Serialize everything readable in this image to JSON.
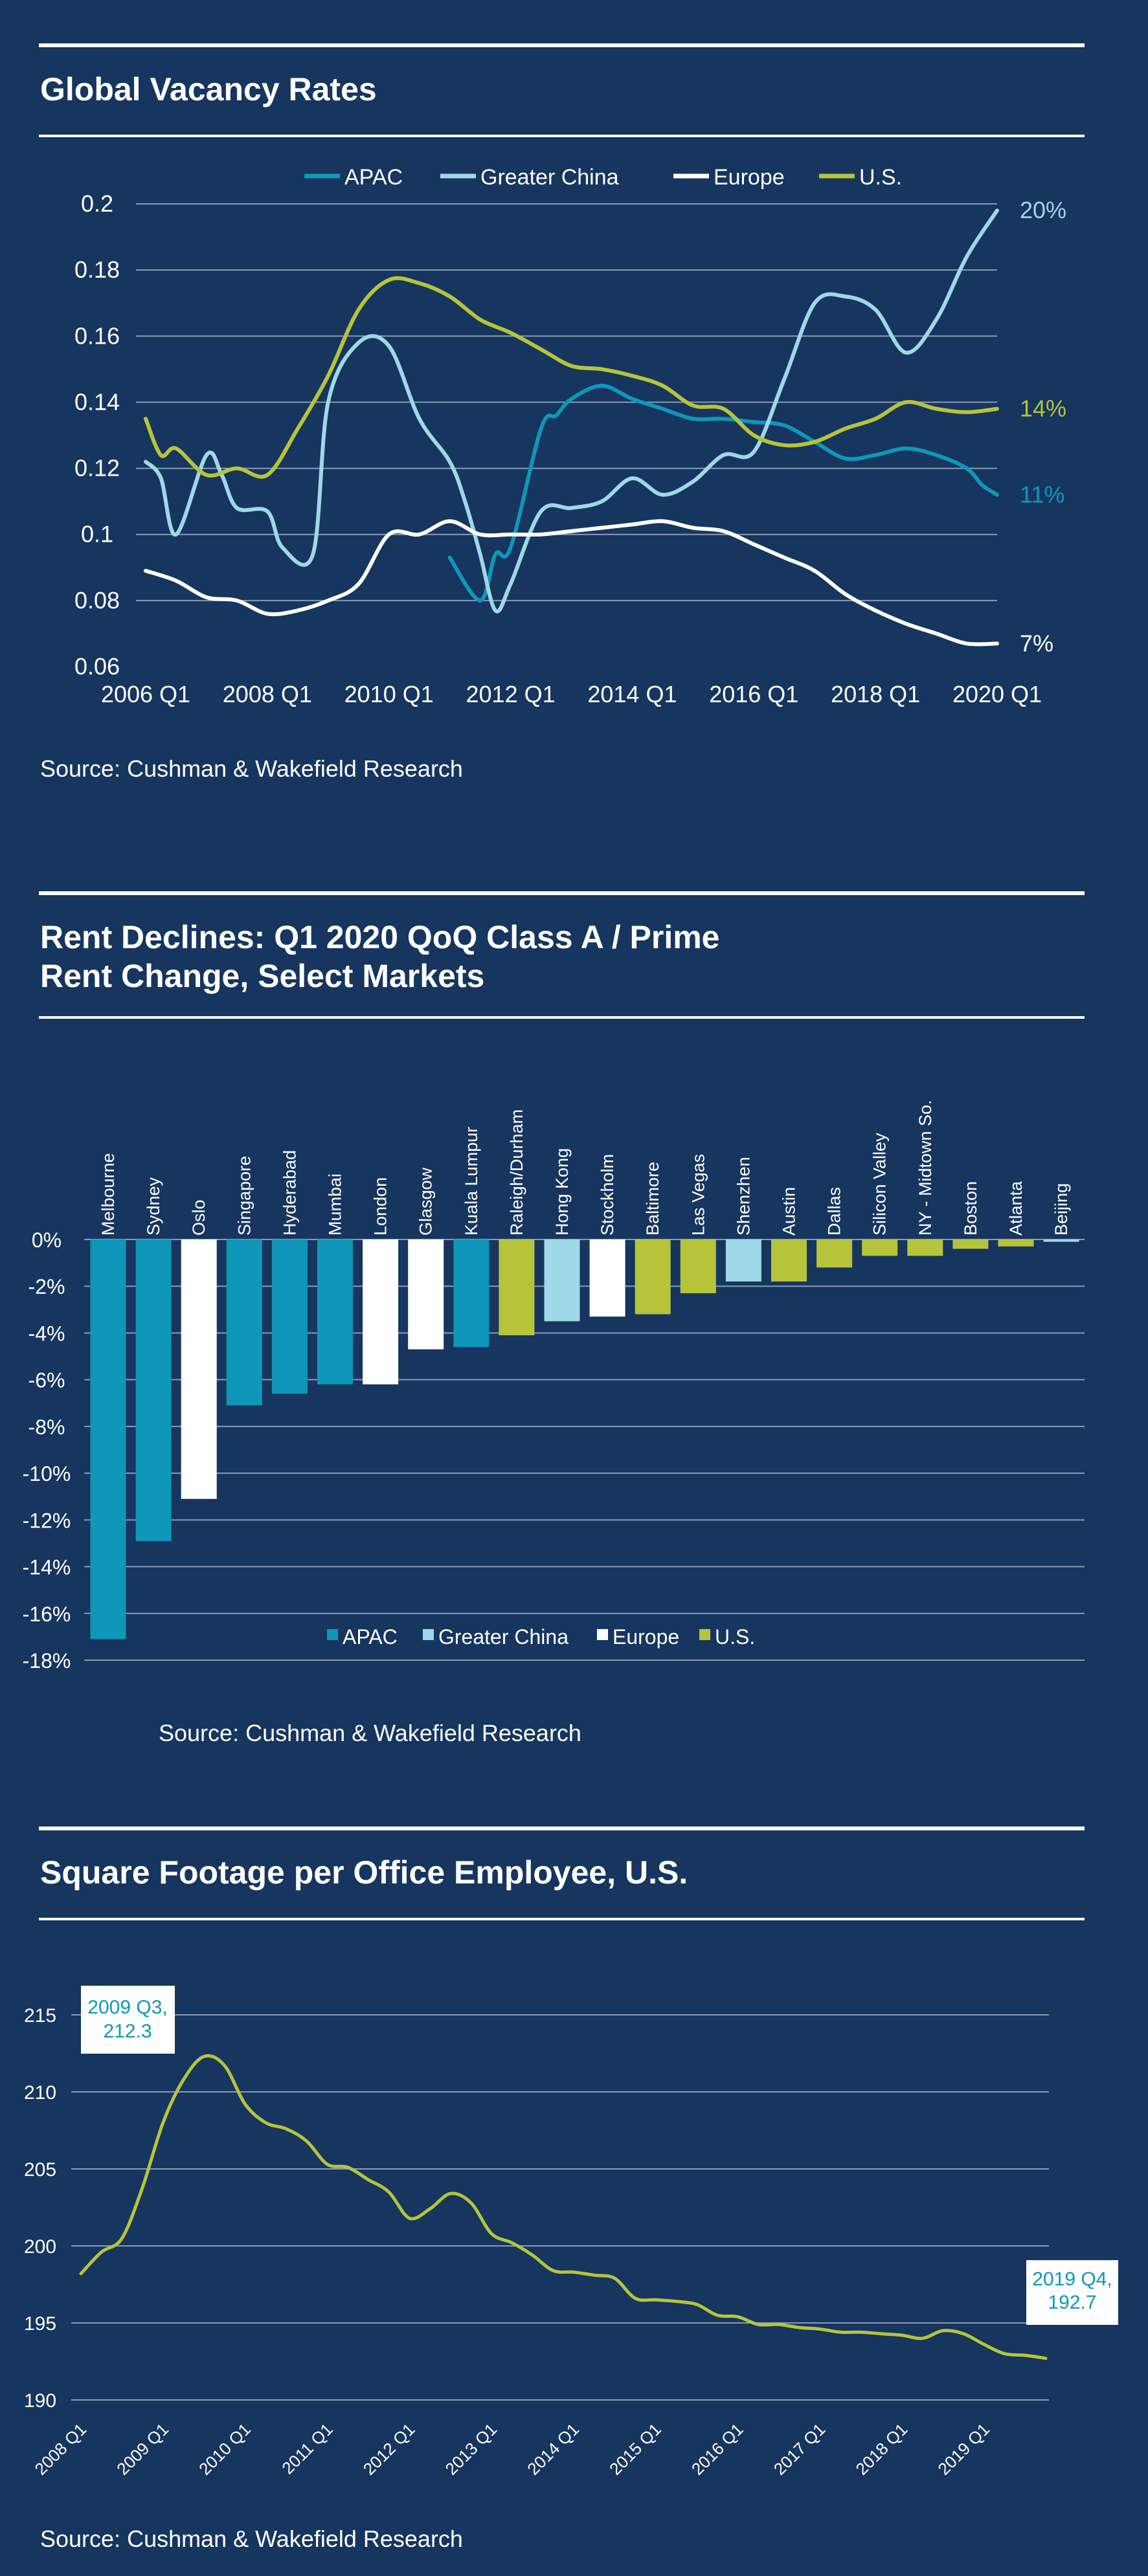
{
  "colors": {
    "background": "#16355f",
    "apac": "#0e97b9",
    "greater_china": "#9fd8e6",
    "europe": "#ffffff",
    "us": "#b7c43a",
    "grid": "#8a9bb5"
  },
  "chart_data": [
    {
      "type": "line",
      "title": "Global Vacancy Rates",
      "source": "Source: Cushman & Wakefield Research",
      "x_tick_labels": [
        "2006 Q1",
        "2008 Q1",
        "2010 Q1",
        "2012 Q1",
        "2014 Q1",
        "2016 Q1",
        "2018 Q1",
        "2020 Q1"
      ],
      "y_tick_labels": [
        "0.2",
        "0.18",
        "0.16",
        "0.14",
        "0.12",
        "0.1",
        "0.08",
        "0.06"
      ],
      "ylim": [
        0.06,
        0.2
      ],
      "legend": "top",
      "end_labels": {
        "apac": "11%",
        "greater_china": "20%",
        "europe": "7%",
        "us": "14%"
      },
      "series": [
        {
          "key": "apac",
          "name": "APAC",
          "x": [
            2011,
            2011.5,
            2011.75,
            2012,
            2012.5,
            2012.75,
            2013,
            2013.5,
            2014,
            2014.5,
            2015,
            2015.5,
            2016,
            2016.5,
            2017,
            2017.5,
            2018,
            2018.5,
            2019,
            2019.5,
            2019.75,
            2020
          ],
          "y": [
            0.093,
            0.08,
            0.094,
            0.096,
            0.132,
            0.136,
            0.141,
            0.145,
            0.141,
            0.138,
            0.135,
            0.135,
            0.134,
            0.133,
            0.128,
            0.123,
            0.124,
            0.126,
            0.124,
            0.12,
            0.115,
            0.112
          ]
        },
        {
          "key": "greater_china",
          "name": "Greater China",
          "x": [
            2006,
            2006.25,
            2006.5,
            2007,
            2007.25,
            2007.5,
            2008,
            2008.25,
            2008.75,
            2009,
            2009.5,
            2010,
            2010.5,
            2011,
            2011.25,
            2011.5,
            2011.75,
            2012,
            2012.5,
            2013,
            2013.5,
            2014,
            2014.5,
            2015,
            2015.5,
            2016,
            2016.5,
            2017,
            2017.5,
            2018,
            2018.5,
            2019,
            2019.5,
            2020
          ],
          "y": [
            0.122,
            0.117,
            0.1,
            0.124,
            0.118,
            0.108,
            0.107,
            0.096,
            0.094,
            0.14,
            0.158,
            0.157,
            0.135,
            0.122,
            0.11,
            0.094,
            0.077,
            0.085,
            0.107,
            0.108,
            0.11,
            0.117,
            0.112,
            0.116,
            0.124,
            0.125,
            0.147,
            0.17,
            0.172,
            0.168,
            0.155,
            0.165,
            0.184,
            0.198
          ]
        },
        {
          "key": "europe",
          "name": "Europe",
          "x": [
            2006,
            2006.5,
            2007,
            2007.5,
            2008,
            2008.5,
            2009,
            2009.5,
            2010,
            2010.5,
            2011,
            2011.5,
            2012,
            2012.5,
            2013,
            2013.5,
            2014,
            2014.5,
            2015,
            2015.5,
            2016,
            2016.5,
            2017,
            2017.5,
            2018,
            2018.5,
            2019,
            2019.5,
            2020
          ],
          "y": [
            0.089,
            0.086,
            0.081,
            0.08,
            0.076,
            0.077,
            0.08,
            0.085,
            0.1,
            0.1,
            0.104,
            0.1,
            0.1,
            0.1,
            0.101,
            0.102,
            0.103,
            0.104,
            0.102,
            0.101,
            0.097,
            0.093,
            0.089,
            0.082,
            0.077,
            0.073,
            0.07,
            0.067,
            0.067
          ]
        },
        {
          "key": "us",
          "name": "U.S.",
          "x": [
            2006,
            2006.25,
            2006.5,
            2007,
            2007.5,
            2008,
            2008.5,
            2009,
            2009.5,
            2010,
            2010.5,
            2011,
            2011.5,
            2012,
            2012.5,
            2013,
            2013.5,
            2014,
            2014.5,
            2015,
            2015.5,
            2016,
            2016.5,
            2017,
            2017.5,
            2018,
            2018.5,
            2019,
            2019.5,
            2020
          ],
          "y": [
            0.135,
            0.124,
            0.126,
            0.118,
            0.12,
            0.118,
            0.132,
            0.148,
            0.168,
            0.177,
            0.176,
            0.172,
            0.165,
            0.161,
            0.156,
            0.151,
            0.15,
            0.148,
            0.145,
            0.139,
            0.138,
            0.13,
            0.127,
            0.128,
            0.132,
            0.135,
            0.14,
            0.138,
            0.137,
            0.138
          ]
        }
      ]
    },
    {
      "type": "bar",
      "title_lines": [
        "Rent Declines: Q1 2020 QoQ Class A / Prime",
        "Rent Change, Select Markets"
      ],
      "source": "Source: Cushman & Wakefield Research",
      "y_tick_labels": [
        "0%",
        "-2%",
        "-4%",
        "-6%",
        "-8%",
        "-10%",
        "-12%",
        "-14%",
        "-16%",
        "-18%"
      ],
      "ylim": [
        -18,
        0
      ],
      "legend": "bottom",
      "legend_entries": [
        {
          "key": "apac",
          "name": "APAC"
        },
        {
          "key": "greater_china",
          "name": "Greater China"
        },
        {
          "key": "europe",
          "name": "Europe"
        },
        {
          "key": "us",
          "name": "U.S."
        }
      ],
      "categories": [
        "Melbourne",
        "Sydney",
        "Oslo",
        "Singapore",
        "Hyderabad",
        "Mumbai",
        "London",
        "Glasgow",
        "Kuala Lumpur",
        "Raleigh/Durham",
        "Hong Kong",
        "Stockholm",
        "Baltimore",
        "Las Vegas",
        "Shenzhen",
        "Austin",
        "Dallas",
        "Silicon Valley",
        "NY - Midtown So.",
        "Boston",
        "Atlanta",
        "Beijing"
      ],
      "values": [
        -17.1,
        -12.9,
        -11.1,
        -7.1,
        -6.6,
        -6.2,
        -6.2,
        -4.7,
        -4.6,
        -4.1,
        -3.5,
        -3.3,
        -3.2,
        -2.3,
        -1.8,
        -1.8,
        -1.2,
        -0.7,
        -0.7,
        -0.4,
        -0.3,
        -0.1
      ],
      "groups": [
        "apac",
        "apac",
        "europe",
        "apac",
        "apac",
        "apac",
        "europe",
        "europe",
        "apac",
        "us",
        "greater_china",
        "europe",
        "us",
        "us",
        "greater_china",
        "us",
        "us",
        "us",
        "us",
        "us",
        "us",
        "greater_china"
      ]
    },
    {
      "type": "line",
      "title": "Square Footage per Office Employee, U.S.",
      "source": "Source: Cushman & Wakefield Research",
      "x_tick_labels": [
        "2008 Q1",
        "2009 Q1",
        "2010 Q1",
        "2011 Q1",
        "2012 Q1",
        "2013 Q1",
        "2014 Q1",
        "2015 Q1",
        "2016 Q1",
        "2017 Q1",
        "2018 Q1",
        "2019 Q1"
      ],
      "y_tick_labels": [
        "215",
        "210",
        "205",
        "200",
        "195",
        "190"
      ],
      "ylim": [
        190,
        216
      ],
      "annotations": [
        {
          "lines": [
            "2009 Q3,",
            "212.3"
          ]
        },
        {
          "lines": [
            "2019 Q4,",
            "192.7"
          ]
        }
      ],
      "series": [
        {
          "key": "us",
          "x": [
            2008,
            2008.25,
            2008.5,
            2008.75,
            2009,
            2009.25,
            2009.5,
            2009.75,
            2010,
            2010.25,
            2010.5,
            2010.75,
            2011,
            2011.25,
            2011.5,
            2011.75,
            2012,
            2012.25,
            2012.5,
            2012.75,
            2013,
            2013.25,
            2013.5,
            2013.75,
            2014,
            2014.25,
            2014.5,
            2014.75,
            2015,
            2015.25,
            2015.5,
            2015.75,
            2016,
            2016.25,
            2016.5,
            2016.75,
            2017,
            2017.25,
            2017.5,
            2017.75,
            2018,
            2018.25,
            2018.5,
            2018.75,
            2019,
            2019.25,
            2019.5,
            2019.75
          ],
          "y": [
            198.2,
            199.6,
            200.5,
            203.8,
            208,
            210.8,
            212.3,
            211.7,
            209.2,
            208,
            207.6,
            206.8,
            205.3,
            205.1,
            204.3,
            203.5,
            201.8,
            202.4,
            203.4,
            202.8,
            200.8,
            200.2,
            199.4,
            198.4,
            198.3,
            198.1,
            197.9,
            196.6,
            196.5,
            196.4,
            196.2,
            195.5,
            195.4,
            194.9,
            194.9,
            194.7,
            194.6,
            194.4,
            194.4,
            194.3,
            194.2,
            194,
            194.5,
            194.3,
            193.6,
            193,
            192.9,
            192.7
          ]
        }
      ]
    }
  ]
}
